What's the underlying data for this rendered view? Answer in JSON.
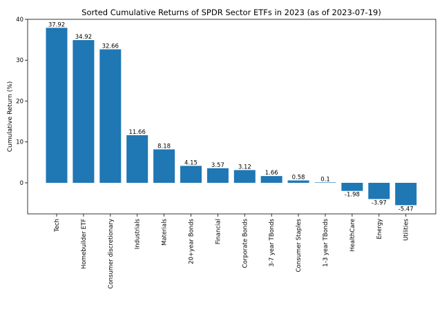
{
  "chart_data": {
    "type": "bar",
    "title": "Sorted Cumulative Returns of SPDR Sector ETFs in 2023 (as of 2023-07-19)",
    "xlabel": "",
    "ylabel": "Cumulative Return (%)",
    "categories": [
      "Tech",
      "Homebuilder ETF",
      "Consumer discretionary",
      "Industrials",
      "Materials",
      "20+year Bonds",
      "Financial",
      "Corporate Bonds",
      "3-7 year TBonds",
      "Consumer Staples",
      "1-3 year TBonds",
      "HealthCare",
      "Energy",
      "Utilities"
    ],
    "values": [
      37.92,
      34.92,
      32.66,
      11.66,
      8.18,
      4.15,
      3.57,
      3.12,
      1.66,
      0.58,
      0.1,
      -1.98,
      -3.97,
      -5.47
    ],
    "value_labels": [
      "37.92",
      "34.92",
      "32.66",
      "11.66",
      "8.18",
      "4.15",
      "3.57",
      "3.12",
      "1.66",
      "0.58",
      "0.1",
      "-1.98",
      "-3.97",
      "-5.47"
    ],
    "ylim": [
      -7.6,
      40.0
    ],
    "yticks": [
      0,
      10,
      20,
      30,
      40
    ],
    "ytick_labels": [
      "0",
      "10",
      "20",
      "30",
      "40"
    ],
    "grid": false,
    "legend": "none",
    "bar_color": "#1f77b4"
  }
}
